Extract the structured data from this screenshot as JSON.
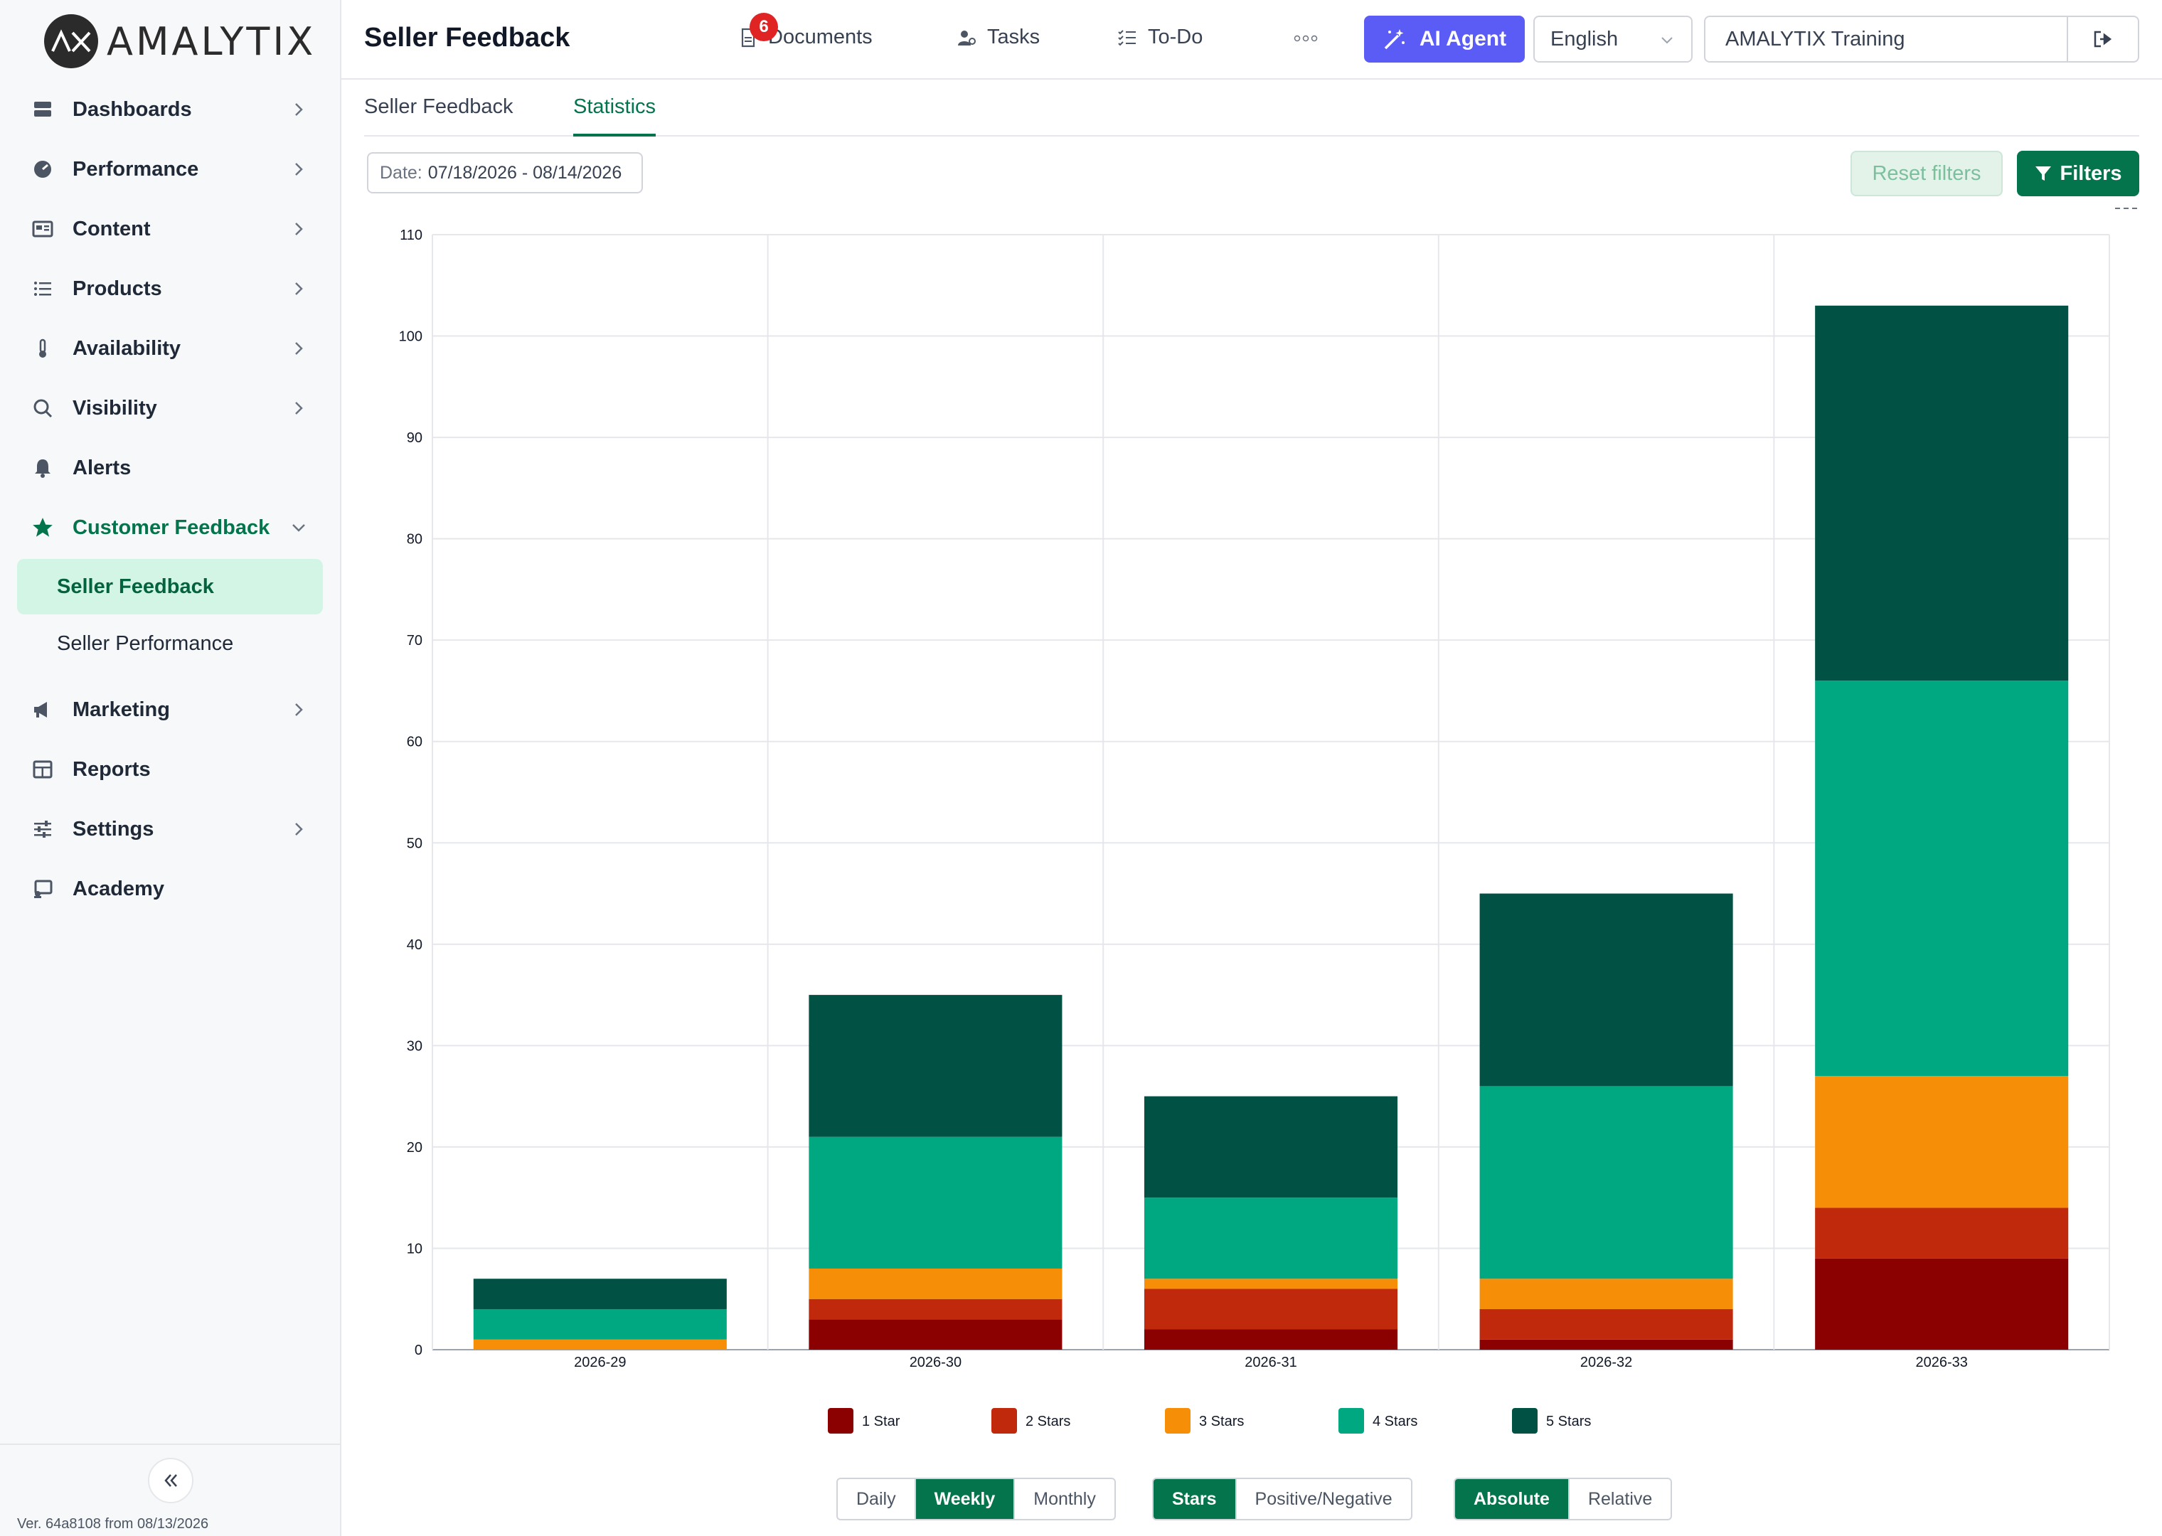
{
  "brand": {
    "name": "AMALYTIX"
  },
  "sidebar": {
    "items": [
      {
        "label": "Dashboards",
        "icon": "dashboard-icon",
        "chevron": "right"
      },
      {
        "label": "Performance",
        "icon": "gauge-icon",
        "chevron": "right"
      },
      {
        "label": "Content",
        "icon": "content-icon",
        "chevron": "right"
      },
      {
        "label": "Products",
        "icon": "list-icon",
        "chevron": "right"
      },
      {
        "label": "Availability",
        "icon": "thermometer-icon",
        "chevron": "right"
      },
      {
        "label": "Visibility",
        "icon": "search-icon",
        "chevron": "right"
      },
      {
        "label": "Alerts",
        "icon": "bell-icon",
        "chevron": ""
      },
      {
        "label": "Customer Feedback",
        "icon": "star-icon",
        "chevron": "down"
      },
      {
        "label": "Marketing",
        "icon": "megaphone-icon",
        "chevron": "right"
      },
      {
        "label": "Reports",
        "icon": "table-icon",
        "chevron": ""
      },
      {
        "label": "Settings",
        "icon": "sliders-icon",
        "chevron": "right"
      },
      {
        "label": "Academy",
        "icon": "academy-icon",
        "chevron": ""
      }
    ],
    "sub_items": [
      {
        "label": "Seller Feedback",
        "active": true
      },
      {
        "label": "Seller Performance",
        "active": false
      }
    ],
    "version": "Ver. 64a8108 from 08/13/2026"
  },
  "header": {
    "title": "Seller Feedback",
    "documents_label": "Documents",
    "documents_badge": "6",
    "tasks_label": "Tasks",
    "todo_label": "To-Do",
    "ai_agent_label": "AI Agent",
    "language": "English",
    "account": "AMALYTIX Training"
  },
  "tabs": [
    {
      "label": "Seller Feedback",
      "active": false
    },
    {
      "label": "Statistics",
      "active": true
    }
  ],
  "filters": {
    "date_label": "Date:",
    "date_value": "07/18/2026 - 08/14/2026",
    "reset_label": "Reset filters",
    "filters_label": "Filters"
  },
  "chart_data": {
    "type": "bar",
    "stacked": true,
    "categories": [
      "2026-29",
      "2026-30",
      "2026-31",
      "2026-32",
      "2026-33"
    ],
    "series": [
      {
        "name": "1 Star",
        "color": "#8b0000",
        "values": [
          0,
          3,
          2,
          1,
          9
        ]
      },
      {
        "name": "2 Stars",
        "color": "#c0290b",
        "values": [
          0,
          2,
          4,
          3,
          5
        ]
      },
      {
        "name": "3 Stars",
        "color": "#f68e08",
        "values": [
          1,
          3,
          1,
          3,
          13
        ]
      },
      {
        "name": "4 Stars",
        "color": "#00a882",
        "values": [
          3,
          13,
          8,
          19,
          39
        ]
      },
      {
        "name": "5 Stars",
        "color": "#015245",
        "values": [
          3,
          14,
          10,
          19,
          37
        ]
      }
    ],
    "ylim": [
      0,
      110
    ],
    "yticks": [
      0,
      10,
      20,
      30,
      40,
      50,
      60,
      70,
      80,
      90,
      100,
      110
    ],
    "grid": true,
    "legend": "bottom"
  },
  "controls": {
    "period": {
      "options": [
        "Daily",
        "Weekly",
        "Monthly"
      ],
      "selected": "Weekly"
    },
    "mode": {
      "options": [
        "Stars",
        "Positive/Negative"
      ],
      "selected": "Stars"
    },
    "scale": {
      "options": [
        "Absolute",
        "Relative"
      ],
      "selected": "Absolute"
    }
  }
}
